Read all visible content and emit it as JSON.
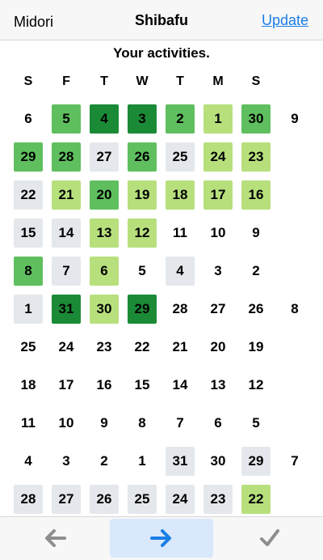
{
  "nav": {
    "left": "Midori",
    "title": "Shibafu",
    "right": "Update"
  },
  "subtitle": "Your activities.",
  "weekdays": [
    "S",
    "F",
    "T",
    "W",
    "T",
    "M",
    "S"
  ],
  "colors": {
    "empty": "#ffffff",
    "gray": "#e4e8ec",
    "light": "#b7e07d",
    "medium": "#5fbf5f",
    "dark": "#1b8a36"
  },
  "rows": [
    {
      "days": [
        {
          "d": "6",
          "c": "empty"
        },
        {
          "d": "5",
          "c": "medium"
        },
        {
          "d": "4",
          "c": "dark"
        },
        {
          "d": "3",
          "c": "dark"
        },
        {
          "d": "2",
          "c": "medium"
        },
        {
          "d": "1",
          "c": "light"
        },
        {
          "d": "30",
          "c": "medium"
        }
      ],
      "month": "9"
    },
    {
      "days": [
        {
          "d": "29",
          "c": "medium"
        },
        {
          "d": "28",
          "c": "medium"
        },
        {
          "d": "27",
          "c": "gray"
        },
        {
          "d": "26",
          "c": "medium"
        },
        {
          "d": "25",
          "c": "gray"
        },
        {
          "d": "24",
          "c": "light"
        },
        {
          "d": "23",
          "c": "light"
        }
      ],
      "month": ""
    },
    {
      "days": [
        {
          "d": "22",
          "c": "gray"
        },
        {
          "d": "21",
          "c": "light"
        },
        {
          "d": "20",
          "c": "medium"
        },
        {
          "d": "19",
          "c": "light"
        },
        {
          "d": "18",
          "c": "light"
        },
        {
          "d": "17",
          "c": "light"
        },
        {
          "d": "16",
          "c": "light"
        }
      ],
      "month": ""
    },
    {
      "days": [
        {
          "d": "15",
          "c": "gray"
        },
        {
          "d": "14",
          "c": "gray"
        },
        {
          "d": "13",
          "c": "light"
        },
        {
          "d": "12",
          "c": "light"
        },
        {
          "d": "11",
          "c": "empty"
        },
        {
          "d": "10",
          "c": "empty"
        },
        {
          "d": "9",
          "c": "empty"
        }
      ],
      "month": ""
    },
    {
      "days": [
        {
          "d": "8",
          "c": "medium"
        },
        {
          "d": "7",
          "c": "gray"
        },
        {
          "d": "6",
          "c": "light"
        },
        {
          "d": "5",
          "c": "empty"
        },
        {
          "d": "4",
          "c": "gray"
        },
        {
          "d": "3",
          "c": "empty"
        },
        {
          "d": "2",
          "c": "empty"
        }
      ],
      "month": ""
    },
    {
      "days": [
        {
          "d": "1",
          "c": "gray"
        },
        {
          "d": "31",
          "c": "dark"
        },
        {
          "d": "30",
          "c": "light"
        },
        {
          "d": "29",
          "c": "dark"
        },
        {
          "d": "28",
          "c": "empty"
        },
        {
          "d": "27",
          "c": "empty"
        },
        {
          "d": "26",
          "c": "empty"
        }
      ],
      "month": "8"
    },
    {
      "days": [
        {
          "d": "25",
          "c": "empty"
        },
        {
          "d": "24",
          "c": "empty"
        },
        {
          "d": "23",
          "c": "empty"
        },
        {
          "d": "22",
          "c": "empty"
        },
        {
          "d": "21",
          "c": "empty"
        },
        {
          "d": "20",
          "c": "empty"
        },
        {
          "d": "19",
          "c": "empty"
        }
      ],
      "month": ""
    },
    {
      "days": [
        {
          "d": "18",
          "c": "empty"
        },
        {
          "d": "17",
          "c": "empty"
        },
        {
          "d": "16",
          "c": "empty"
        },
        {
          "d": "15",
          "c": "empty"
        },
        {
          "d": "14",
          "c": "empty"
        },
        {
          "d": "13",
          "c": "empty"
        },
        {
          "d": "12",
          "c": "empty"
        }
      ],
      "month": ""
    },
    {
      "days": [
        {
          "d": "11",
          "c": "empty"
        },
        {
          "d": "10",
          "c": "empty"
        },
        {
          "d": "9",
          "c": "empty"
        },
        {
          "d": "8",
          "c": "empty"
        },
        {
          "d": "7",
          "c": "empty"
        },
        {
          "d": "6",
          "c": "empty"
        },
        {
          "d": "5",
          "c": "empty"
        }
      ],
      "month": ""
    },
    {
      "days": [
        {
          "d": "4",
          "c": "empty"
        },
        {
          "d": "3",
          "c": "empty"
        },
        {
          "d": "2",
          "c": "empty"
        },
        {
          "d": "1",
          "c": "empty"
        },
        {
          "d": "31",
          "c": "gray"
        },
        {
          "d": "30",
          "c": "empty"
        },
        {
          "d": "29",
          "c": "gray"
        }
      ],
      "month": "7"
    },
    {
      "days": [
        {
          "d": "28",
          "c": "gray"
        },
        {
          "d": "27",
          "c": "gray"
        },
        {
          "d": "26",
          "c": "gray"
        },
        {
          "d": "25",
          "c": "gray"
        },
        {
          "d": "24",
          "c": "gray"
        },
        {
          "d": "23",
          "c": "gray"
        },
        {
          "d": "22",
          "c": "light"
        }
      ],
      "month": ""
    }
  ],
  "toolbar": {
    "back_icon": "arrow-left-icon",
    "forward_icon": "arrow-right-icon",
    "check_icon": "checkmark-icon",
    "icon_inactive_color": "#8e8e8e",
    "icon_active_color": "#1a7ee6"
  }
}
